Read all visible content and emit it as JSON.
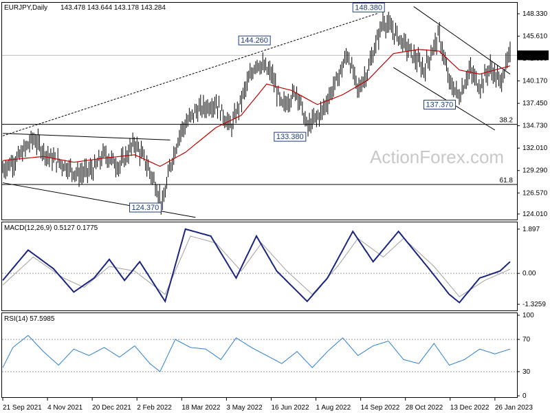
{
  "chart_data": [
    {
      "type": "candlestick",
      "title": "EURJPY,Daily",
      "ohlc_header": "143.478 143.644 143.178 143.284",
      "last_price": "143.284",
      "ylim": [
        123.5,
        149.5
      ],
      "y_ticks": [
        "148.330",
        "145.610",
        "142.890",
        "140.170",
        "137.450",
        "134.730",
        "132.010",
        "129.290",
        "126.570",
        "124.010"
      ],
      "x_ticks": [
        "21 Sep 2021",
        "4 Nov 2021",
        "20 Dec 2021",
        "2 Feb 2022",
        "18 Mar 2022",
        "3 May 2022",
        "16 Jun 2022",
        "1 Aug 2022",
        "14 Sep 2022",
        "28 Oct 2022",
        "13 Dec 2022",
        "26 Jan 2023"
      ],
      "annotations": [
        "148.380",
        "144.260",
        "133.380",
        "124.370",
        "137.370"
      ],
      "fib_levels": [
        {
          "label": "38.2",
          "value": 134.9
        },
        {
          "label": "61.8",
          "value": 127.6
        }
      ],
      "price_path": [
        {
          "x": 0,
          "y": 129.5
        },
        {
          "x": 0.03,
          "y": 130.8
        },
        {
          "x": 0.06,
          "y": 133.2
        },
        {
          "x": 0.09,
          "y": 131.0
        },
        {
          "x": 0.12,
          "y": 130.0
        },
        {
          "x": 0.15,
          "y": 128.8
        },
        {
          "x": 0.18,
          "y": 129.5
        },
        {
          "x": 0.2,
          "y": 131.3
        },
        {
          "x": 0.23,
          "y": 129.8
        },
        {
          "x": 0.26,
          "y": 132.7
        },
        {
          "x": 0.28,
          "y": 130.5
        },
        {
          "x": 0.3,
          "y": 127.8
        },
        {
          "x": 0.315,
          "y": 125.0
        },
        {
          "x": 0.33,
          "y": 129.8
        },
        {
          "x": 0.35,
          "y": 134.0
        },
        {
          "x": 0.38,
          "y": 136.5
        },
        {
          "x": 0.42,
          "y": 137.5
        },
        {
          "x": 0.45,
          "y": 134.5
        },
        {
          "x": 0.48,
          "y": 139.5
        },
        {
          "x": 0.5,
          "y": 142.5
        },
        {
          "x": 0.53,
          "y": 141.0
        },
        {
          "x": 0.55,
          "y": 137.0
        },
        {
          "x": 0.58,
          "y": 139.0
        },
        {
          "x": 0.6,
          "y": 134.5
        },
        {
          "x": 0.63,
          "y": 136.5
        },
        {
          "x": 0.66,
          "y": 140.5
        },
        {
          "x": 0.68,
          "y": 143.5
        },
        {
          "x": 0.7,
          "y": 139.0
        },
        {
          "x": 0.72,
          "y": 141.5
        },
        {
          "x": 0.75,
          "y": 147.5
        },
        {
          "x": 0.78,
          "y": 145.5
        },
        {
          "x": 0.8,
          "y": 144.0
        },
        {
          "x": 0.83,
          "y": 141.5
        },
        {
          "x": 0.86,
          "y": 145.8
        },
        {
          "x": 0.88,
          "y": 140.0
        },
        {
          "x": 0.9,
          "y": 138.3
        },
        {
          "x": 0.92,
          "y": 141.5
        },
        {
          "x": 0.94,
          "y": 139.5
        },
        {
          "x": 0.96,
          "y": 141.8
        },
        {
          "x": 0.98,
          "y": 140.0
        },
        {
          "x": 1.0,
          "y": 143.3
        }
      ],
      "ma_path": [
        {
          "x": 0,
          "y": 130.5
        },
        {
          "x": 0.08,
          "y": 131.0
        },
        {
          "x": 0.14,
          "y": 130.3
        },
        {
          "x": 0.2,
          "y": 130.8
        },
        {
          "x": 0.26,
          "y": 131.2
        },
        {
          "x": 0.31,
          "y": 129.8
        },
        {
          "x": 0.36,
          "y": 131.5
        },
        {
          "x": 0.42,
          "y": 134.5
        },
        {
          "x": 0.47,
          "y": 136.0
        },
        {
          "x": 0.52,
          "y": 139.8
        },
        {
          "x": 0.57,
          "y": 139.0
        },
        {
          "x": 0.62,
          "y": 137.3
        },
        {
          "x": 0.67,
          "y": 138.5
        },
        {
          "x": 0.72,
          "y": 140.3
        },
        {
          "x": 0.77,
          "y": 143.5
        },
        {
          "x": 0.82,
          "y": 144.0
        },
        {
          "x": 0.86,
          "y": 143.8
        },
        {
          "x": 0.9,
          "y": 141.5
        },
        {
          "x": 0.94,
          "y": 141.0
        },
        {
          "x": 1.0,
          "y": 142.0
        }
      ]
    },
    {
      "type": "line",
      "title": "MACD(12,26,9) 0.5127 0.1775",
      "y_ticks": [
        "1.897",
        "0.00",
        "-1.3259"
      ],
      "macd_path": [
        {
          "x": 0,
          "y": -0.3
        },
        {
          "x": 0.05,
          "y": 1.0
        },
        {
          "x": 0.1,
          "y": 0.2
        },
        {
          "x": 0.14,
          "y": -0.8
        },
        {
          "x": 0.18,
          "y": -0.2
        },
        {
          "x": 0.21,
          "y": 0.6
        },
        {
          "x": 0.24,
          "y": -0.3
        },
        {
          "x": 0.27,
          "y": 0.5
        },
        {
          "x": 0.32,
          "y": -1.2
        },
        {
          "x": 0.36,
          "y": 1.9
        },
        {
          "x": 0.41,
          "y": 1.6
        },
        {
          "x": 0.46,
          "y": -0.2
        },
        {
          "x": 0.5,
          "y": 1.6
        },
        {
          "x": 0.54,
          "y": 0.1
        },
        {
          "x": 0.6,
          "y": -1.2
        },
        {
          "x": 0.64,
          "y": -0.2
        },
        {
          "x": 0.69,
          "y": 1.8
        },
        {
          "x": 0.73,
          "y": 0.5
        },
        {
          "x": 0.78,
          "y": 1.8
        },
        {
          "x": 0.84,
          "y": 0.2
        },
        {
          "x": 0.88,
          "y": -0.9
        },
        {
          "x": 0.9,
          "y": -1.25
        },
        {
          "x": 0.94,
          "y": -0.2
        },
        {
          "x": 0.98,
          "y": 0.1
        },
        {
          "x": 1.0,
          "y": 0.5
        }
      ],
      "signal_path": [
        {
          "x": 0,
          "y": -0.5
        },
        {
          "x": 0.06,
          "y": 0.7
        },
        {
          "x": 0.12,
          "y": -0.2
        },
        {
          "x": 0.16,
          "y": -0.6
        },
        {
          "x": 0.21,
          "y": 0.3
        },
        {
          "x": 0.26,
          "y": 0.1
        },
        {
          "x": 0.32,
          "y": -0.9
        },
        {
          "x": 0.37,
          "y": 1.6
        },
        {
          "x": 0.42,
          "y": 1.3
        },
        {
          "x": 0.47,
          "y": 0.1
        },
        {
          "x": 0.51,
          "y": 1.3
        },
        {
          "x": 0.56,
          "y": 0.1
        },
        {
          "x": 0.61,
          "y": -0.9
        },
        {
          "x": 0.66,
          "y": 0.3
        },
        {
          "x": 0.7,
          "y": 1.5
        },
        {
          "x": 0.75,
          "y": 0.7
        },
        {
          "x": 0.79,
          "y": 1.5
        },
        {
          "x": 0.85,
          "y": 0.3
        },
        {
          "x": 0.9,
          "y": -1.0
        },
        {
          "x": 0.95,
          "y": -0.3
        },
        {
          "x": 1.0,
          "y": 0.18
        }
      ]
    },
    {
      "type": "line",
      "title": "RSI(14) 57.5985",
      "y_ticks": [
        "100",
        "70",
        "30",
        "0"
      ],
      "ylim": [
        0,
        100
      ],
      "rsi_path": [
        {
          "x": 0,
          "y": 35
        },
        {
          "x": 0.02,
          "y": 60
        },
        {
          "x": 0.05,
          "y": 75
        },
        {
          "x": 0.08,
          "y": 55
        },
        {
          "x": 0.11,
          "y": 38
        },
        {
          "x": 0.14,
          "y": 58
        },
        {
          "x": 0.17,
          "y": 50
        },
        {
          "x": 0.2,
          "y": 60
        },
        {
          "x": 0.23,
          "y": 48
        },
        {
          "x": 0.26,
          "y": 62
        },
        {
          "x": 0.29,
          "y": 40
        },
        {
          "x": 0.31,
          "y": 30
        },
        {
          "x": 0.34,
          "y": 70
        },
        {
          "x": 0.37,
          "y": 60
        },
        {
          "x": 0.4,
          "y": 58
        },
        {
          "x": 0.43,
          "y": 45
        },
        {
          "x": 0.46,
          "y": 72
        },
        {
          "x": 0.49,
          "y": 60
        },
        {
          "x": 0.52,
          "y": 50
        },
        {
          "x": 0.55,
          "y": 40
        },
        {
          "x": 0.58,
          "y": 55
        },
        {
          "x": 0.61,
          "y": 35
        },
        {
          "x": 0.64,
          "y": 55
        },
        {
          "x": 0.67,
          "y": 72
        },
        {
          "x": 0.7,
          "y": 50
        },
        {
          "x": 0.73,
          "y": 62
        },
        {
          "x": 0.76,
          "y": 68
        },
        {
          "x": 0.79,
          "y": 45
        },
        {
          "x": 0.82,
          "y": 40
        },
        {
          "x": 0.85,
          "y": 65
        },
        {
          "x": 0.88,
          "y": 38
        },
        {
          "x": 0.91,
          "y": 45
        },
        {
          "x": 0.94,
          "y": 58
        },
        {
          "x": 0.97,
          "y": 52
        },
        {
          "x": 1.0,
          "y": 58
        }
      ]
    }
  ],
  "watermark": "ActionForex.com",
  "colors": {
    "price_bars": "#000000",
    "ma": "#c00000",
    "macd": "#1a237e",
    "signal": "#a0a0a0",
    "rsi": "#2b7fd1",
    "label_bg": "#ffffff",
    "label_border": "#1f3a7a",
    "last_price_bg": "#000000",
    "last_price_text": "#ffffff"
  }
}
